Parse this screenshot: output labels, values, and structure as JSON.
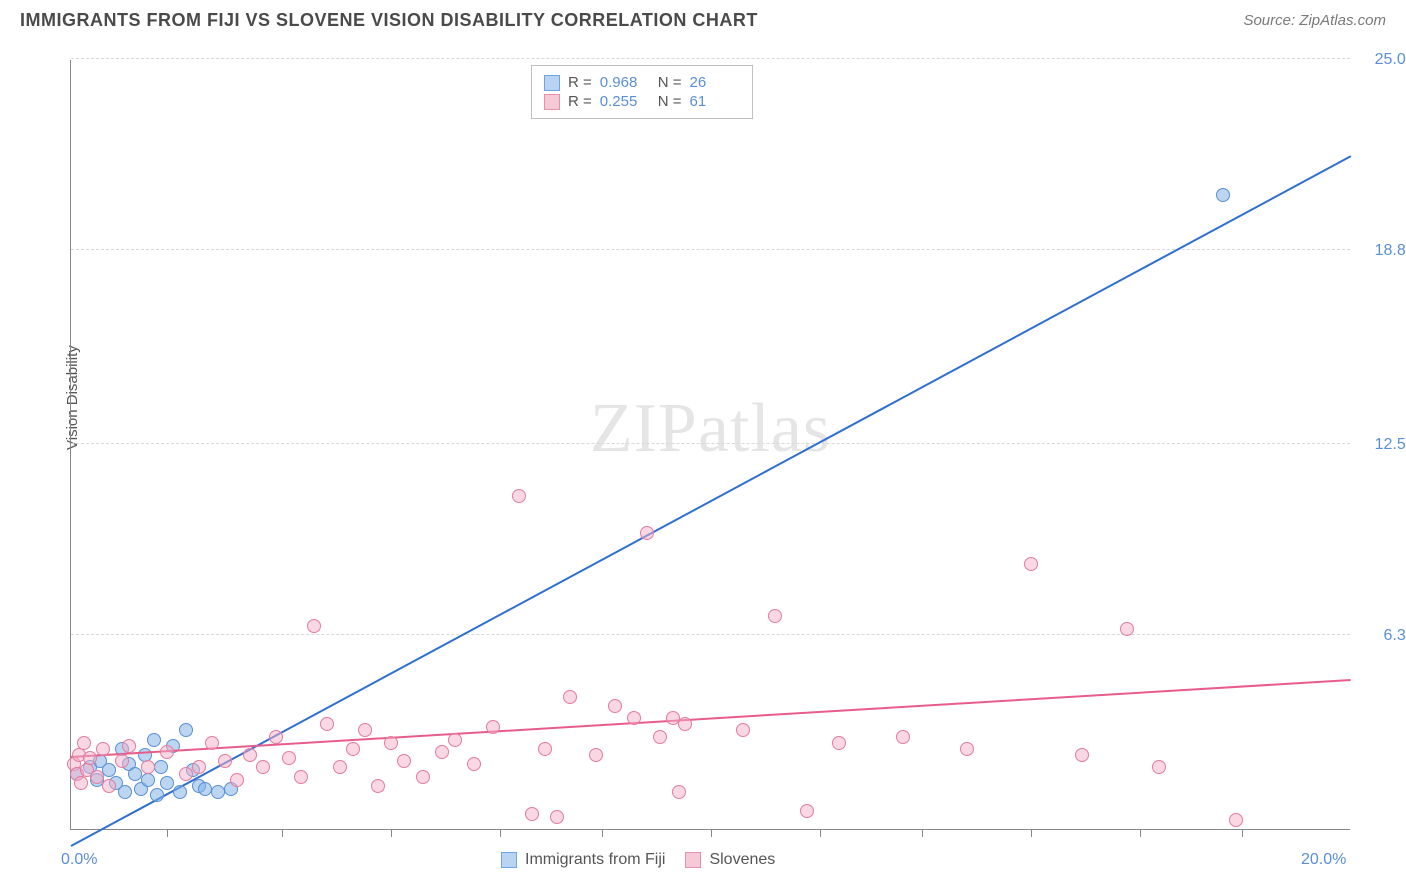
{
  "header": {
    "title": "IMMIGRANTS FROM FIJI VS SLOVENE VISION DISABILITY CORRELATION CHART",
    "source": "Source: ZipAtlas.com"
  },
  "chart": {
    "ylabel": "Vision Disability",
    "watermark_a": "ZIP",
    "watermark_b": "atlas",
    "background_color": "#ffffff",
    "grid_color": "#d8d8d8",
    "axis_label_color": "#5a8fd6",
    "x_min": 0.0,
    "x_max": 20.0,
    "y_min": 0.0,
    "y_max": 25.0,
    "x_ticks": [
      0.0,
      20.0
    ],
    "y_ticks": [
      6.3,
      12.5,
      18.8,
      25.0
    ],
    "x_tick_labels": [
      "0.0%",
      "20.0%"
    ],
    "y_tick_labels": [
      "6.3%",
      "12.5%",
      "18.8%",
      "25.0%"
    ],
    "x_minor_ticks": [
      1.5,
      3.3,
      5.0,
      6.7,
      8.3,
      10.0,
      11.7,
      13.3,
      15.0,
      16.7,
      18.3
    ],
    "legend_top": [
      {
        "swatch_fill": "#b9d4f2",
        "swatch_border": "#6ea5e0",
        "r_label": "R =",
        "r_value": "0.968",
        "n_label": "N =",
        "n_value": "26"
      },
      {
        "swatch_fill": "#f6c9d6",
        "swatch_border": "#e98fae",
        "r_label": "R =",
        "r_value": "0.255",
        "n_label": "N =",
        "n_value": "61"
      }
    ],
    "legend_bottom": [
      {
        "swatch_fill": "#b9d4f2",
        "swatch_border": "#6ea5e0",
        "label": "Immigrants from Fiji"
      },
      {
        "swatch_fill": "#f6c9d6",
        "swatch_border": "#e98fae",
        "label": "Slovenes"
      }
    ],
    "series": [
      {
        "name": "fiji",
        "point_fill": "rgba(133,180,230,0.55)",
        "point_border": "#5a8fd6",
        "line_color": "#2f6fd0",
        "line_start": {
          "x": 0.0,
          "y": -0.6
        },
        "line_end": {
          "x": 20.0,
          "y": 21.8
        },
        "points": [
          {
            "x": 0.1,
            "y": 1.8
          },
          {
            "x": 0.3,
            "y": 2.0
          },
          {
            "x": 0.4,
            "y": 1.6
          },
          {
            "x": 0.45,
            "y": 2.2
          },
          {
            "x": 0.6,
            "y": 1.9
          },
          {
            "x": 0.7,
            "y": 1.5
          },
          {
            "x": 0.8,
            "y": 2.6
          },
          {
            "x": 0.85,
            "y": 1.2
          },
          {
            "x": 0.9,
            "y": 2.1
          },
          {
            "x": 1.0,
            "y": 1.8
          },
          {
            "x": 1.1,
            "y": 1.3
          },
          {
            "x": 1.15,
            "y": 2.4
          },
          {
            "x": 1.2,
            "y": 1.6
          },
          {
            "x": 1.3,
            "y": 2.9
          },
          {
            "x": 1.35,
            "y": 1.1
          },
          {
            "x": 1.4,
            "y": 2.0
          },
          {
            "x": 1.5,
            "y": 1.5
          },
          {
            "x": 1.6,
            "y": 2.7
          },
          {
            "x": 1.7,
            "y": 1.2
          },
          {
            "x": 1.8,
            "y": 3.2
          },
          {
            "x": 1.9,
            "y": 1.9
          },
          {
            "x": 2.0,
            "y": 1.4
          },
          {
            "x": 2.1,
            "y": 1.3
          },
          {
            "x": 2.3,
            "y": 1.2
          },
          {
            "x": 2.5,
            "y": 1.3
          },
          {
            "x": 18.0,
            "y": 20.6
          }
        ]
      },
      {
        "name": "slovenes",
        "point_fill": "rgba(244,176,199,0.5)",
        "point_border": "#e57ba0",
        "line_color": "#e85c8a",
        "line_start": {
          "x": 0.0,
          "y": 2.3
        },
        "line_end": {
          "x": 20.0,
          "y": 4.8
        },
        "points": [
          {
            "x": 0.05,
            "y": 2.1
          },
          {
            "x": 0.1,
            "y": 1.8
          },
          {
            "x": 0.12,
            "y": 2.4
          },
          {
            "x": 0.15,
            "y": 1.5
          },
          {
            "x": 0.2,
            "y": 2.8
          },
          {
            "x": 0.25,
            "y": 1.9
          },
          {
            "x": 0.3,
            "y": 2.3
          },
          {
            "x": 0.4,
            "y": 1.7
          },
          {
            "x": 0.5,
            "y": 2.6
          },
          {
            "x": 0.6,
            "y": 1.4
          },
          {
            "x": 0.8,
            "y": 2.2
          },
          {
            "x": 0.9,
            "y": 2.7
          },
          {
            "x": 1.2,
            "y": 2.0
          },
          {
            "x": 1.5,
            "y": 2.5
          },
          {
            "x": 1.8,
            "y": 1.8
          },
          {
            "x": 2.0,
            "y": 2.0
          },
          {
            "x": 2.2,
            "y": 2.8
          },
          {
            "x": 2.4,
            "y": 2.2
          },
          {
            "x": 2.6,
            "y": 1.6
          },
          {
            "x": 2.8,
            "y": 2.4
          },
          {
            "x": 3.0,
            "y": 2.0
          },
          {
            "x": 3.2,
            "y": 3.0
          },
          {
            "x": 3.4,
            "y": 2.3
          },
          {
            "x": 3.6,
            "y": 1.7
          },
          {
            "x": 3.8,
            "y": 6.6
          },
          {
            "x": 4.0,
            "y": 3.4
          },
          {
            "x": 4.2,
            "y": 2.0
          },
          {
            "x": 4.4,
            "y": 2.6
          },
          {
            "x": 4.6,
            "y": 3.2
          },
          {
            "x": 4.8,
            "y": 1.4
          },
          {
            "x": 5.0,
            "y": 2.8
          },
          {
            "x": 5.2,
            "y": 2.2
          },
          {
            "x": 5.5,
            "y": 1.7
          },
          {
            "x": 5.8,
            "y": 2.5
          },
          {
            "x": 6.0,
            "y": 2.9
          },
          {
            "x": 6.3,
            "y": 2.1
          },
          {
            "x": 6.6,
            "y": 3.3
          },
          {
            "x": 7.0,
            "y": 10.8
          },
          {
            "x": 7.2,
            "y": 0.5
          },
          {
            "x": 7.4,
            "y": 2.6
          },
          {
            "x": 7.6,
            "y": 0.4
          },
          {
            "x": 7.8,
            "y": 4.3
          },
          {
            "x": 8.2,
            "y": 2.4
          },
          {
            "x": 8.5,
            "y": 4.0
          },
          {
            "x": 8.8,
            "y": 3.6
          },
          {
            "x": 9.0,
            "y": 9.6
          },
          {
            "x": 9.2,
            "y": 3.0
          },
          {
            "x": 9.4,
            "y": 3.6
          },
          {
            "x": 9.5,
            "y": 1.2
          },
          {
            "x": 9.6,
            "y": 3.4
          },
          {
            "x": 10.5,
            "y": 3.2
          },
          {
            "x": 11.0,
            "y": 6.9
          },
          {
            "x": 11.5,
            "y": 0.6
          },
          {
            "x": 12.0,
            "y": 2.8
          },
          {
            "x": 13.0,
            "y": 3.0
          },
          {
            "x": 14.0,
            "y": 2.6
          },
          {
            "x": 15.0,
            "y": 8.6
          },
          {
            "x": 15.8,
            "y": 2.4
          },
          {
            "x": 16.5,
            "y": 6.5
          },
          {
            "x": 17.0,
            "y": 2.0
          },
          {
            "x": 18.2,
            "y": 0.3
          }
        ]
      }
    ]
  }
}
